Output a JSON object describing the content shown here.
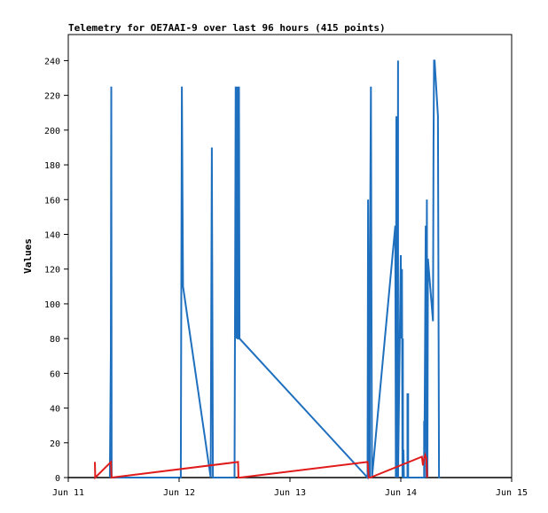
{
  "chart_data": {
    "type": "line",
    "title": "Telemetry for OE7AAI-9 over last 96 hours (415 points)",
    "ylabel": "Values",
    "xlabel": "",
    "x_tick_labels": [
      "Jun 11",
      "Jun 12",
      "Jun 13",
      "Jun 14",
      "Jun 15"
    ],
    "y_ticks": [
      0,
      20,
      40,
      60,
      80,
      100,
      120,
      140,
      160,
      180,
      200,
      220,
      240
    ],
    "xlim": [
      0,
      4
    ],
    "ylim": [
      0,
      255
    ],
    "grid": false,
    "legend": "none",
    "series": [
      {
        "color": "#1f6fbf",
        "x": [
          0.375,
          0.384,
          0.386,
          0.388,
          0.391,
          1.015,
          1.025,
          1.035,
          1.285,
          1.295,
          1.305,
          1.31,
          1.5,
          1.51,
          1.52,
          1.525,
          1.53,
          1.535,
          1.54,
          1.545,
          2.7,
          2.705,
          2.71,
          2.715,
          2.72,
          2.72,
          2.725,
          2.73,
          2.735,
          2.74,
          2.74,
          2.95,
          2.955,
          2.96,
          2.97,
          2.975,
          2.975,
          3.0,
          3.005,
          3.01,
          3.015,
          3.018,
          3.02,
          3.024,
          3.028,
          3.06,
          3.06,
          3.066,
          3.066,
          3.21,
          3.21,
          3.212,
          3.212,
          3.225,
          3.23,
          3.235,
          3.24,
          3.245,
          3.29,
          3.295,
          3.3,
          3.305,
          3.335,
          3.345,
          3.355
        ],
        "y": [
          0,
          72,
          160,
          225,
          0,
          0,
          225,
          110,
          0,
          190,
          0,
          0,
          0,
          225,
          80,
          225,
          80,
          80,
          225,
          80,
          0,
          160,
          0,
          80,
          0,
          108,
          160,
          225,
          108,
          0,
          0,
          145,
          0,
          208,
          0,
          240,
          0,
          128,
          80,
          120,
          0,
          80,
          0,
          16,
          0,
          0,
          48,
          48,
          0,
          0,
          32,
          32,
          0,
          145,
          0,
          160,
          0,
          126,
          90,
          192,
          240,
          240,
          208,
          0,
          0
        ]
      },
      {
        "color": "#e01b1b",
        "x": [
          0.24,
          0.243,
          0.385,
          0.39,
          1.532,
          1.535,
          1.54,
          1.545,
          1.55,
          2.7,
          2.71,
          2.725,
          3.19,
          3.2,
          3.21,
          3.22,
          3.23,
          3.238
        ],
        "y": [
          9,
          0,
          9,
          0,
          9,
          0,
          0,
          0,
          0,
          9,
          0,
          0,
          12,
          7,
          11,
          13,
          11,
          0
        ]
      }
    ]
  }
}
